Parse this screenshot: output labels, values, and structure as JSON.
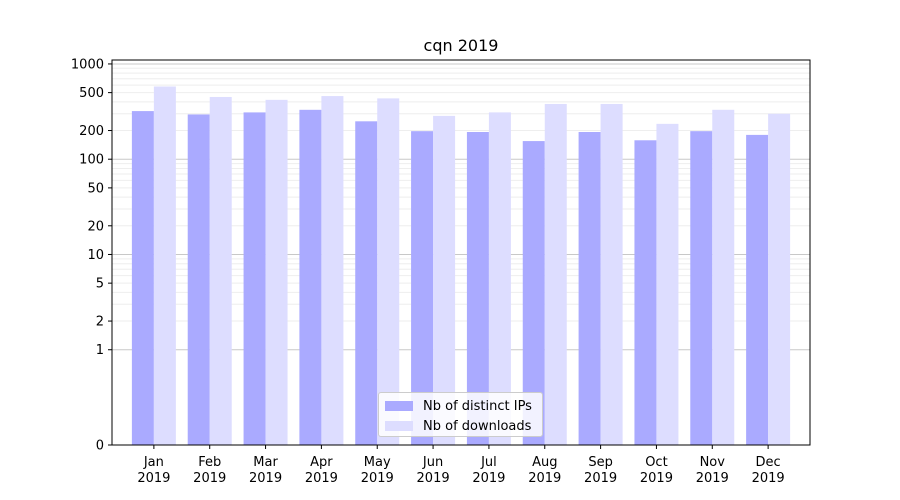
{
  "chart_data": {
    "type": "bar",
    "title": "cqn 2019",
    "xlabel": "",
    "ylabel": "",
    "yscale": "symlog",
    "ylim": [
      0,
      1100
    ],
    "grid": true,
    "legend_position": "bottom-center",
    "categories": [
      [
        "Jan",
        "2019"
      ],
      [
        "Feb",
        "2019"
      ],
      [
        "Mar",
        "2019"
      ],
      [
        "Apr",
        "2019"
      ],
      [
        "May",
        "2019"
      ],
      [
        "Jun",
        "2019"
      ],
      [
        "Jul",
        "2019"
      ],
      [
        "Aug",
        "2019"
      ],
      [
        "Sep",
        "2019"
      ],
      [
        "Oct",
        "2019"
      ],
      [
        "Nov",
        "2019"
      ],
      [
        "Dec",
        "2019"
      ]
    ],
    "y_ticks": [
      0,
      1,
      2,
      5,
      10,
      20,
      50,
      100,
      200,
      500,
      1000
    ],
    "series": [
      {
        "name": "Nb of distinct IPs",
        "color": "#aaaaff",
        "values": [
          320,
          295,
          310,
          330,
          250,
          197,
          193,
          155,
          193,
          158,
          197,
          180
        ]
      },
      {
        "name": "Nb of downloads",
        "color": "#ddddff",
        "values": [
          580,
          450,
          420,
          460,
          435,
          285,
          310,
          380,
          380,
          235,
          330,
          300
        ]
      }
    ]
  }
}
